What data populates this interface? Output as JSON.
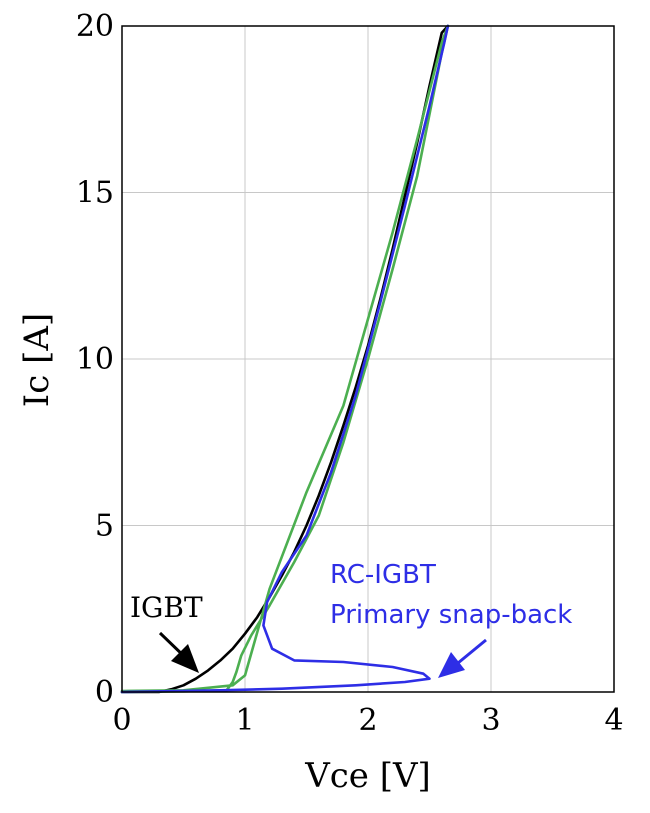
{
  "chart_data": {
    "type": "line",
    "title": "",
    "xlabel": "Vce [V]",
    "ylabel": "Ic [A]",
    "xlim": [
      0,
      4
    ],
    "ylim": [
      0,
      20
    ],
    "xticks": [
      0,
      1,
      2,
      3,
      4
    ],
    "yticks": [
      0,
      5,
      10,
      15,
      20
    ],
    "grid": true,
    "series": [
      {
        "color": "#000000",
        "x": [
          0.0,
          0.3,
          0.4,
          0.5,
          0.6,
          0.7,
          0.8,
          0.9,
          1.0,
          1.1,
          1.2,
          1.3,
          1.4,
          1.5,
          1.6,
          1.7,
          1.8,
          1.9,
          2.0,
          2.1,
          2.2,
          2.3,
          2.4,
          2.5,
          2.6,
          2.65
        ],
        "y": [
          0.0,
          0.0,
          0.08,
          0.2,
          0.4,
          0.65,
          0.95,
          1.3,
          1.75,
          2.25,
          2.85,
          3.5,
          4.2,
          5.0,
          5.9,
          6.9,
          8.0,
          9.15,
          10.4,
          11.8,
          13.3,
          14.9,
          16.5,
          18.2,
          19.8,
          20.0
        ]
      },
      {
        "color": "#4CAF50",
        "x": [
          0.0,
          0.5,
          0.85,
          0.9,
          0.93,
          0.97,
          1.05,
          1.2,
          1.4,
          1.6,
          1.8,
          2.0,
          2.2,
          2.4,
          2.6,
          2.65,
          2.6,
          2.4,
          2.2,
          2.0,
          1.8,
          1.5,
          1.2,
          1.0,
          0.9,
          0.5,
          0.0
        ],
        "y": [
          0.0,
          0.02,
          0.05,
          0.3,
          0.6,
          1.1,
          1.7,
          2.6,
          3.9,
          5.3,
          7.5,
          10.0,
          12.7,
          15.5,
          19.2,
          20.0,
          19.5,
          16.6,
          13.8,
          11.2,
          8.6,
          6.0,
          3.1,
          0.5,
          0.2,
          0.05,
          0.03
        ]
      },
      {
        "color": "#2E2EE6",
        "x": [
          0.0,
          0.8,
          1.3,
          1.9,
          2.3,
          2.5,
          2.45,
          2.2,
          1.8,
          1.4,
          1.22,
          1.15,
          1.18,
          1.3,
          1.5,
          1.7,
          1.9,
          2.1,
          2.3,
          2.5,
          2.62,
          2.65
        ],
        "y": [
          0.0,
          0.05,
          0.1,
          0.2,
          0.3,
          0.4,
          0.55,
          0.75,
          0.9,
          0.95,
          1.3,
          2.0,
          2.7,
          3.6,
          4.7,
          6.6,
          8.9,
          11.7,
          14.6,
          17.6,
          19.5,
          20.0
        ]
      }
    ],
    "annotations": [
      {
        "text": "IGBT",
        "color": "#000000"
      },
      {
        "text": "RC-IGBT",
        "color": "#2E2EE6"
      },
      {
        "text": "Primary snap-back",
        "color": "#2E2EE6"
      }
    ]
  }
}
